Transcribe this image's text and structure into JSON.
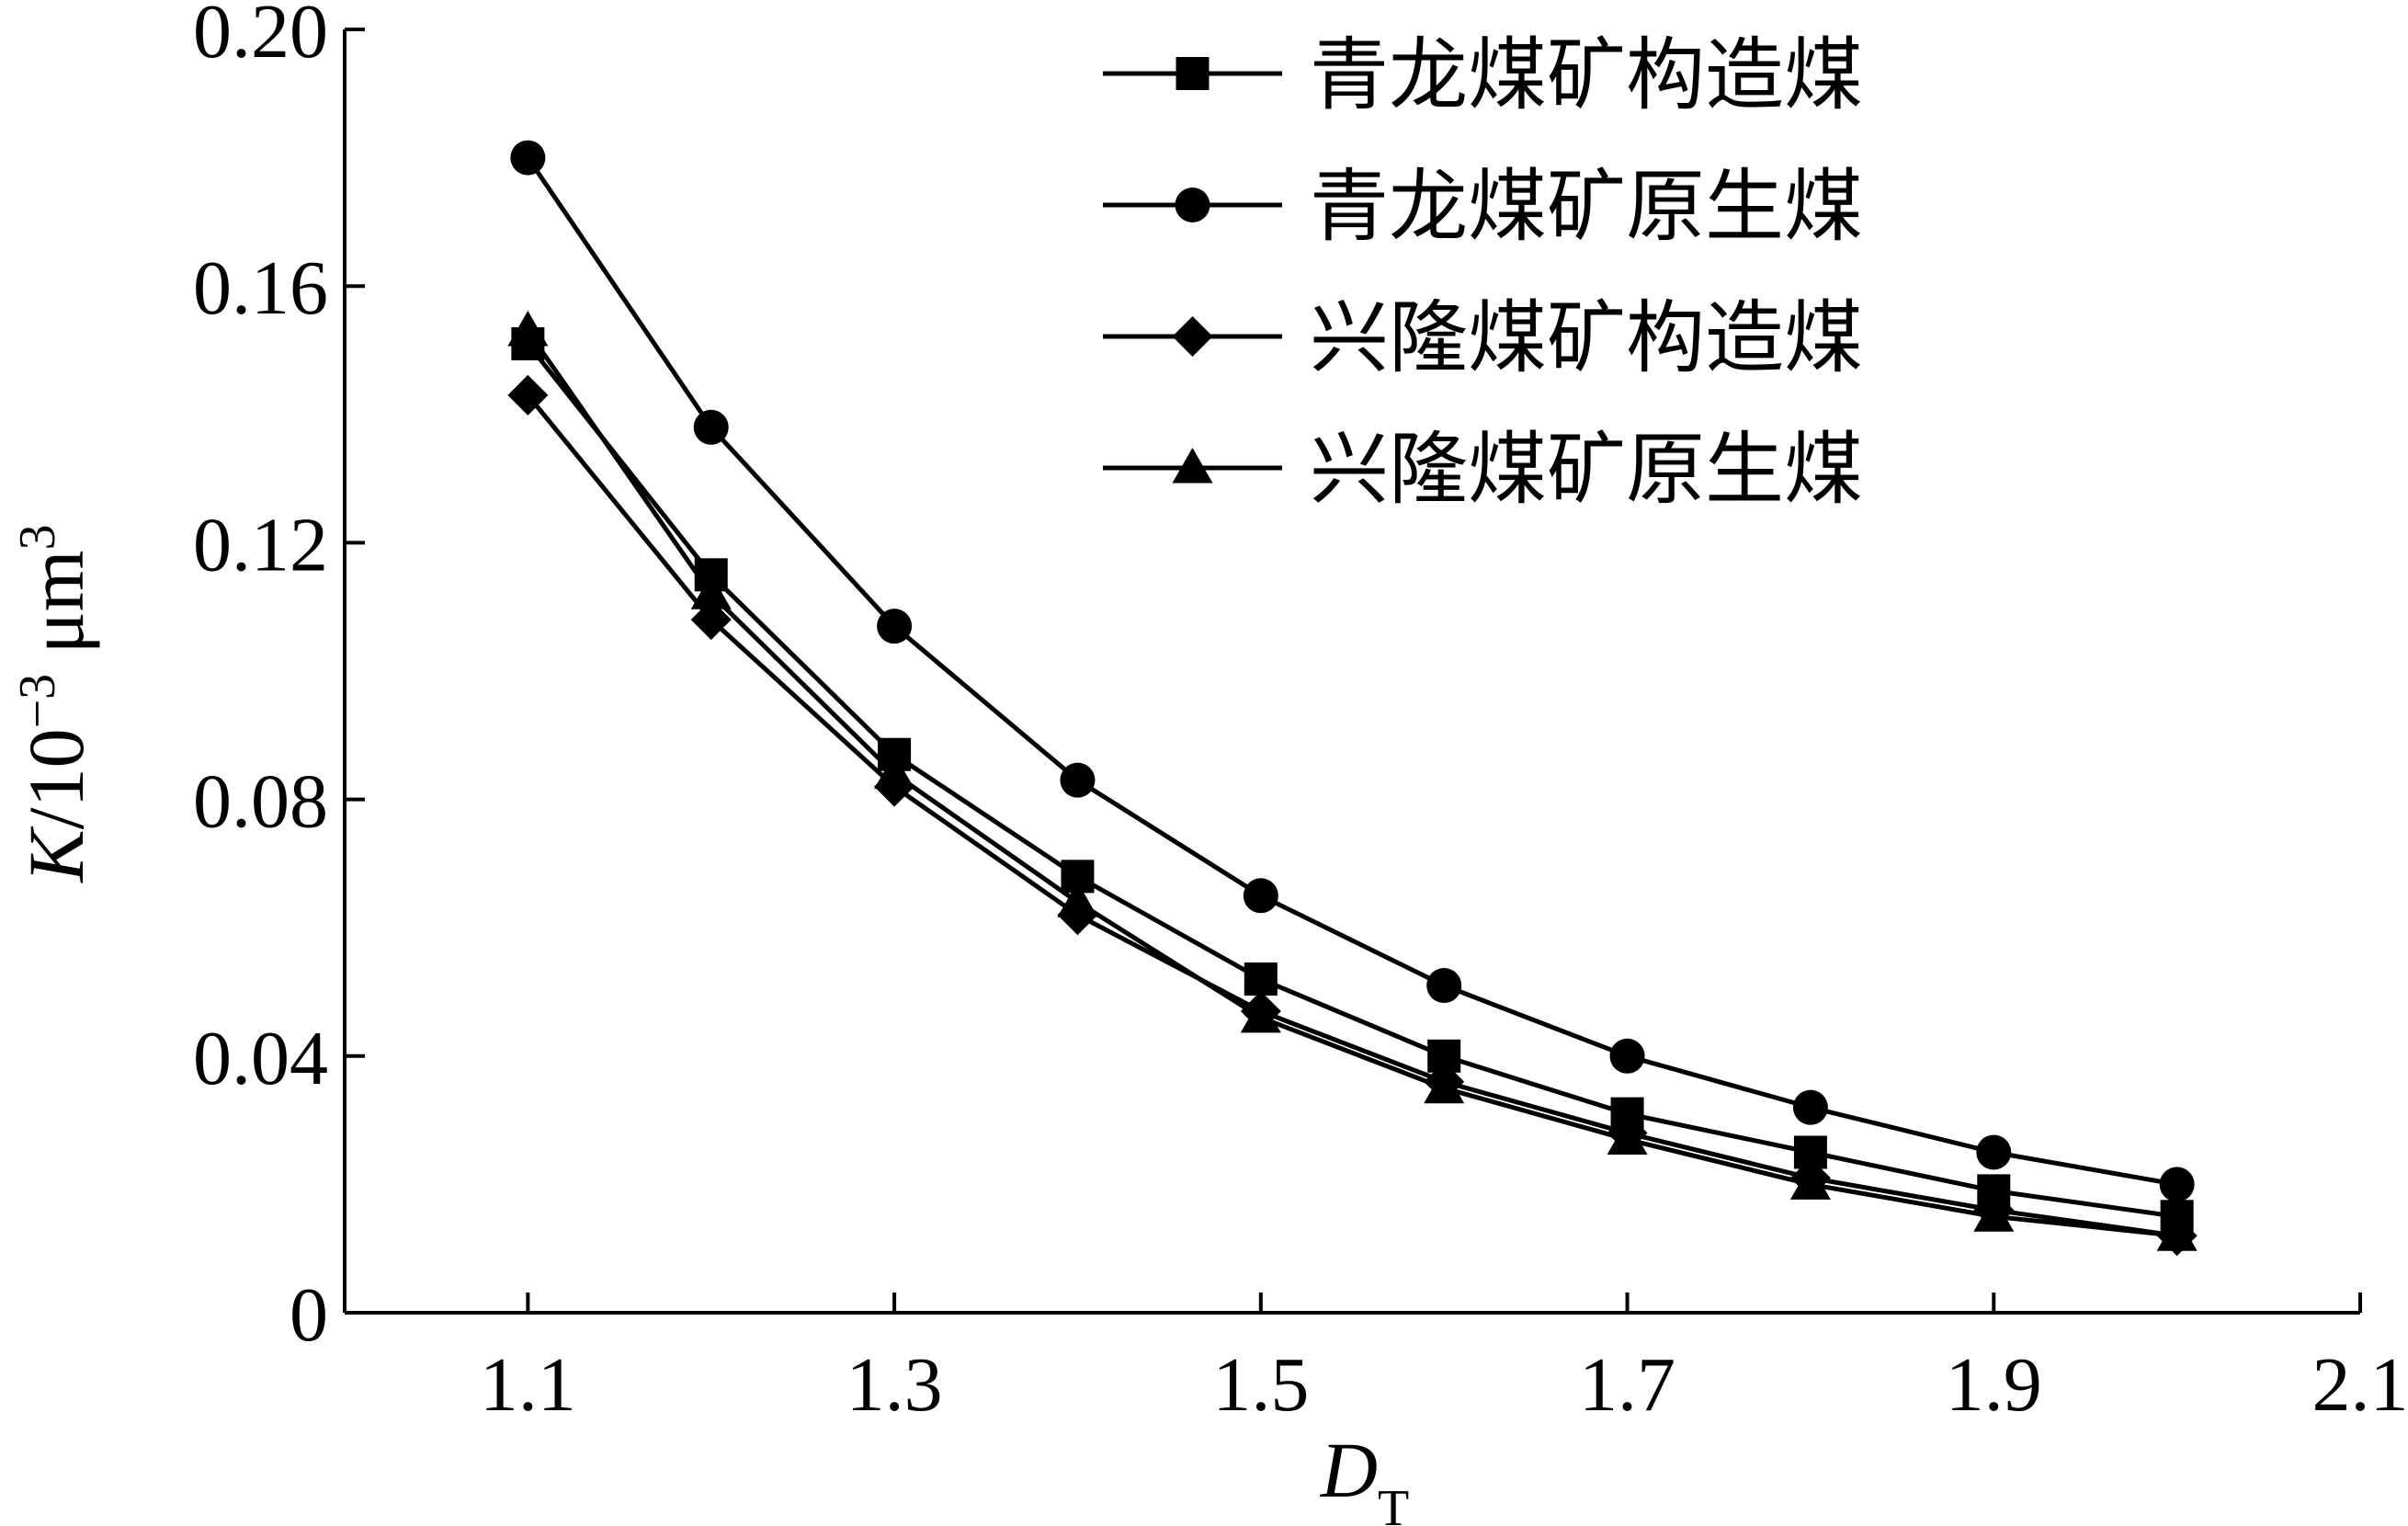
{
  "chart_data": {
    "type": "line",
    "xlabel": {
      "main": "D",
      "sub": "T"
    },
    "ylabel": {
      "main": "K",
      "rest": "/10",
      "exp1": "−3",
      "unit": " μm",
      "exp2": "3"
    },
    "xlim": [
      1.0,
      2.1
    ],
    "ylim": [
      0,
      0.2
    ],
    "x_ticks": [
      "1.1",
      "1.3",
      "1.5",
      "1.7",
      "1.9",
      "2.1"
    ],
    "y_ticks": [
      "0",
      "0.04",
      "0.08",
      "0.12",
      "0.16",
      "0.20"
    ],
    "grid": false,
    "legend_position": "top-right",
    "x": [
      1.1,
      1.2,
      1.3,
      1.4,
      1.5,
      1.6,
      1.7,
      1.8,
      1.9,
      2.0
    ],
    "series": [
      {
        "name": "青龙煤矿构造煤",
        "marker": "square",
        "values": [
          0.151,
          0.115,
          0.087,
          0.068,
          0.052,
          0.04,
          0.031,
          0.025,
          0.019,
          0.015
        ]
      },
      {
        "name": "青龙煤矿原生煤",
        "marker": "circle",
        "values": [
          0.18,
          0.138,
          0.107,
          0.083,
          0.065,
          0.051,
          0.04,
          0.032,
          0.025,
          0.02
        ]
      },
      {
        "name": "兴隆煤矿构造煤",
        "marker": "diamond",
        "values": [
          0.143,
          0.108,
          0.082,
          0.062,
          0.047,
          0.036,
          0.028,
          0.021,
          0.016,
          0.012
        ]
      },
      {
        "name": "兴隆煤矿原生煤",
        "marker": "triangle",
        "values": [
          0.153,
          0.112,
          0.084,
          0.064,
          0.046,
          0.035,
          0.027,
          0.02,
          0.015,
          0.012
        ]
      }
    ],
    "colors": {
      "line": "#000000",
      "background": "#ffffff"
    }
  }
}
